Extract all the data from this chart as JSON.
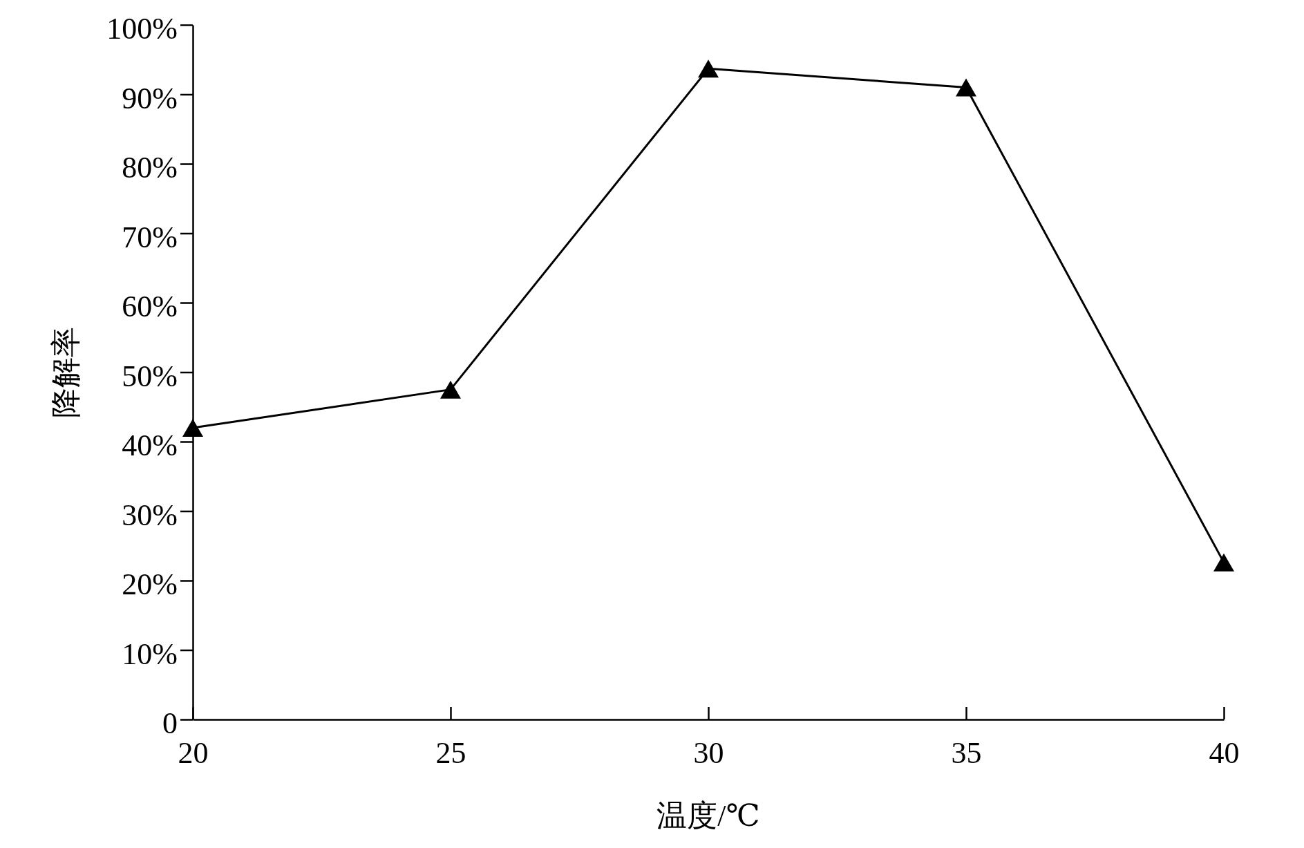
{
  "chart_data": {
    "type": "line",
    "xlabel": "温度/℃",
    "ylabel": "降解率",
    "x": [
      20,
      25,
      30,
      35,
      40
    ],
    "series": [
      {
        "color": "#000000",
        "values": [
          42,
          47.5,
          93.7,
          91,
          22.6
        ]
      }
    ],
    "xlim": [
      20,
      40
    ],
    "xticks": [
      20,
      25,
      30,
      35,
      40
    ],
    "ylim": [
      0,
      100
    ],
    "yticks": [
      0,
      {
        "value": 10,
        "label": "10%"
      },
      {
        "value": 20,
        "label": "20%"
      },
      {
        "value": 30,
        "label": "30%"
      },
      {
        "value": 40,
        "label": "40%"
      },
      {
        "value": 50,
        "label": "50%"
      },
      {
        "value": 60,
        "label": "60%"
      },
      {
        "value": 70,
        "label": "70%"
      },
      {
        "value": 80,
        "label": "80%"
      },
      {
        "value": 90,
        "label": "90%"
      },
      {
        "value": 100,
        "label": "100%"
      }
    ],
    "marker": "triangle",
    "line_style": "solid"
  }
}
